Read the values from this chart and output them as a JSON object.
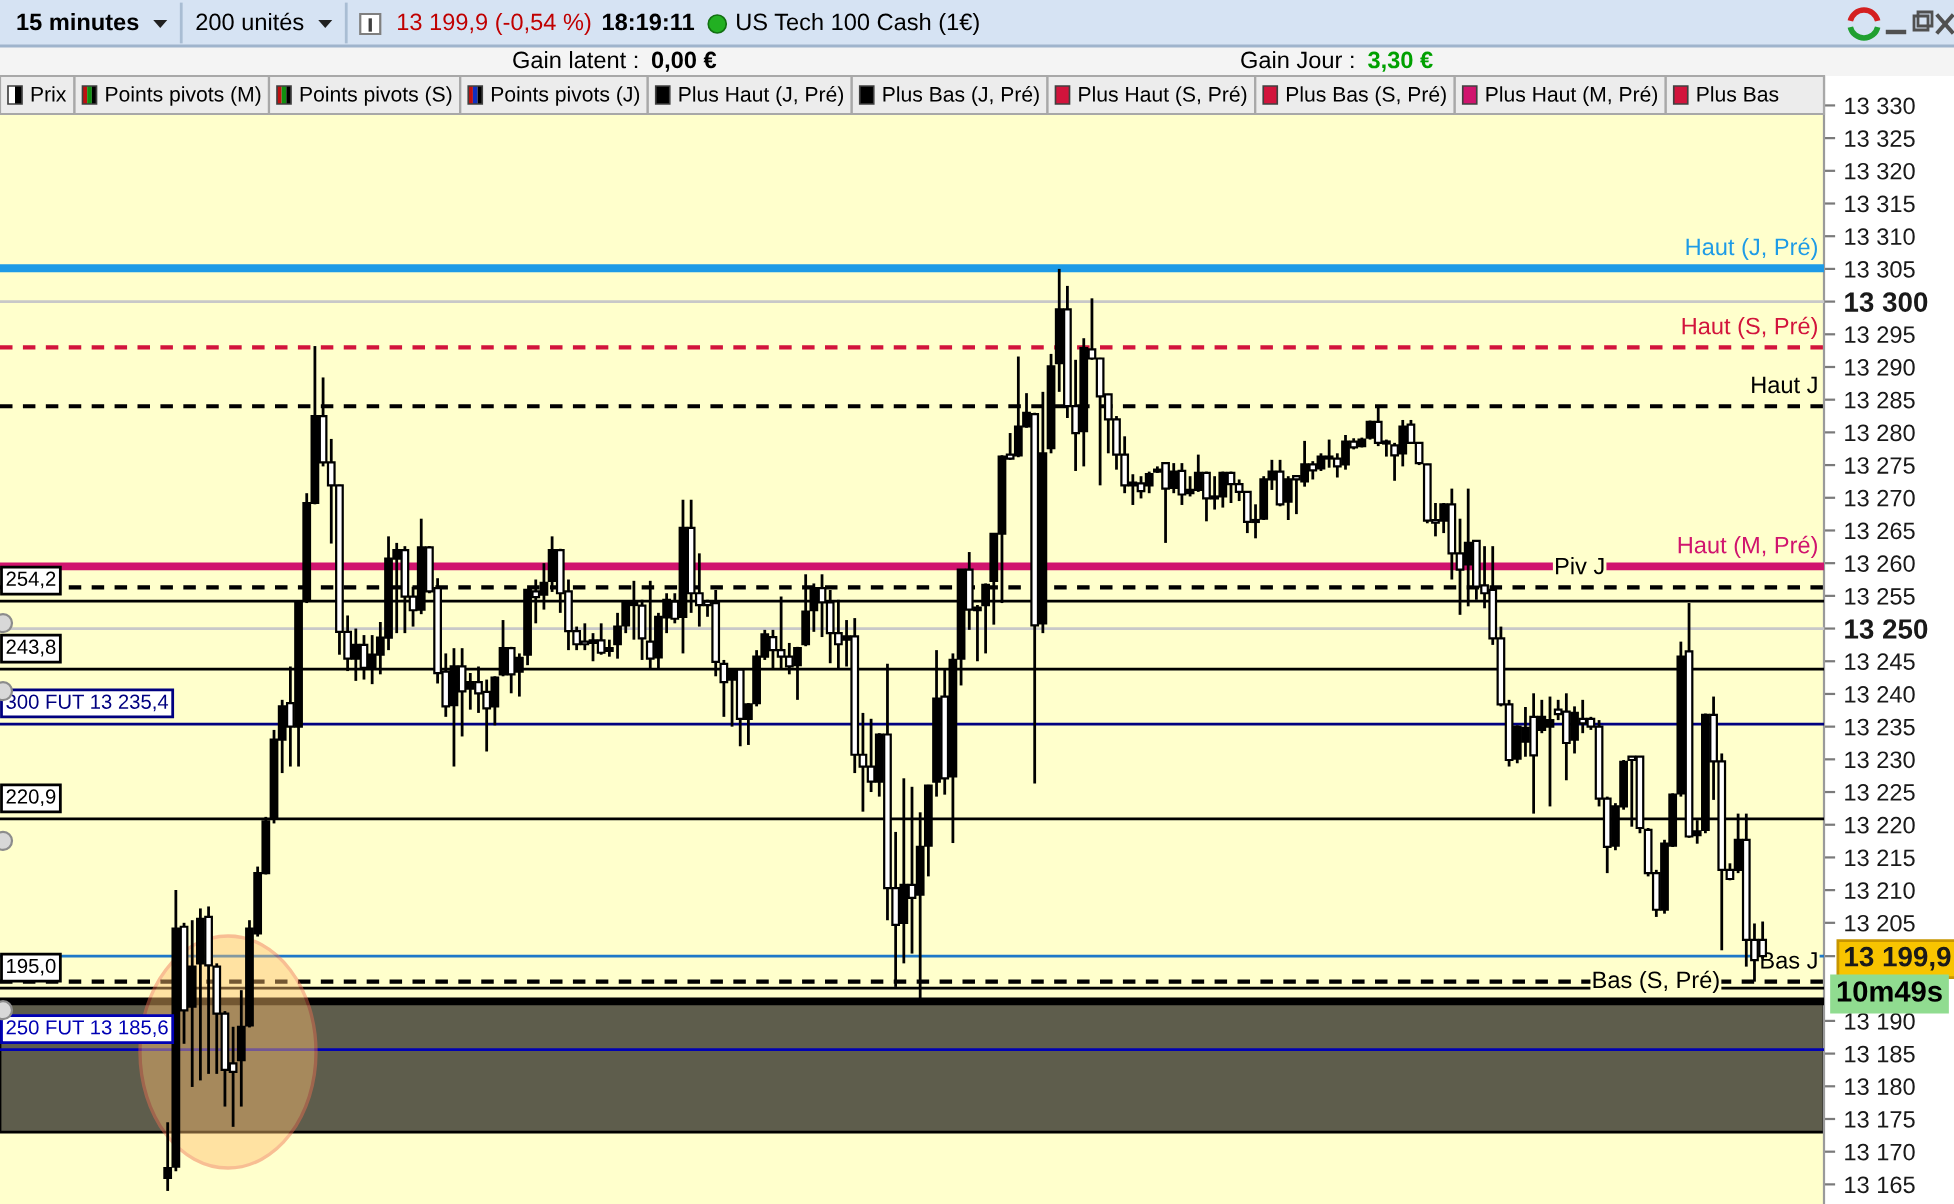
{
  "chart_data": {
    "type": "candlestick",
    "categories": [
      null,
      null,
      null,
      null,
      null,
      null,
      null,
      null,
      null,
      null,
      null,
      null,
      null,
      null,
      null,
      null,
      null,
      null,
      null,
      null,
      null,
      null,
      null,
      null,
      null,
      null,
      null,
      null,
      null,
      null,
      null,
      null,
      null,
      null,
      null,
      null,
      null,
      null,
      null,
      null,
      null,
      null,
      null,
      null,
      null,
      null,
      null,
      null,
      null,
      null,
      null,
      null,
      null,
      null,
      null,
      null,
      null,
      null,
      null,
      null,
      null,
      null,
      null,
      null,
      null,
      null,
      null,
      null,
      null,
      null,
      null,
      null,
      null,
      null,
      null,
      null,
      null,
      null,
      null,
      null,
      null,
      null,
      null,
      null,
      null,
      null,
      null,
      null,
      null,
      null,
      null,
      null,
      null,
      null,
      null,
      null,
      null,
      null,
      null,
      null,
      null,
      null,
      null,
      null,
      null,
      null,
      null,
      null,
      null,
      null,
      null,
      null,
      null,
      null,
      null,
      null,
      null,
      null,
      null,
      null,
      null,
      null,
      null,
      null,
      null,
      null,
      null,
      null,
      null,
      null,
      null,
      null,
      null,
      null,
      null,
      null,
      null,
      null,
      null,
      null,
      null,
      null,
      null,
      null,
      null,
      null,
      null,
      null,
      null,
      null,
      null,
      null,
      null,
      null,
      null,
      null,
      null,
      null,
      null,
      null,
      null,
      null,
      null,
      null,
      null,
      null,
      null,
      null,
      null,
      null,
      null,
      null,
      null,
      null,
      null,
      null,
      null,
      null,
      null,
      null,
      null,
      null,
      null,
      null,
      null,
      null,
      null,
      null,
      null,
      null,
      null,
      null,
      null,
      null,
      null,
      null,
      null,
      null,
      null,
      null,
      null,
      null,
      null,
      null,
      null,
      null,
      null,
      null,
      null,
      null,
      null,
      null,
      null,
      null,
      null,
      null,
      null,
      null,
      null,
      null,
      null,
      null,
      null
    ],
    "ohlc": [
      null,
      null,
      null,
      null,
      null,
      null,
      null,
      null,
      null,
      null,
      null,
      null,
      null,
      null,
      null,
      null,
      null,
      null,
      null,
      null,
      [
        13166.0,
        13174.5,
        13164.0,
        13167.5
      ],
      [
        13167.7,
        13210.0,
        13167.0,
        13204.1
      ],
      [
        13204.4,
        13205.0,
        13186.5,
        13191.6
      ],
      [
        13192.2,
        13205.4,
        13179.9,
        13198.3
      ],
      [
        13198.8,
        13207.2,
        13180.9,
        13205.6
      ],
      [
        13205.9,
        13207.5,
        13181.9,
        13198.5
      ],
      [
        13198.3,
        13198.8,
        13181.9,
        13191.1
      ],
      [
        13191.1,
        13191.5,
        13176.9,
        13182.5
      ],
      [
        13183.5,
        13189.1,
        13173.8,
        13182.2
      ],
      [
        13184.0,
        13194.7,
        13176.9,
        13189.1
      ],
      [
        13189.3,
        13205.4,
        13189.0,
        13204.1
      ],
      [
        13203.4,
        13213.6,
        13202.9,
        13212.6
      ],
      [
        13212.6,
        13221.2,
        13212.4,
        13220.5
      ],
      [
        13221.2,
        13234.5,
        13220.2,
        13233.0
      ],
      [
        13233.0,
        13239.1,
        13227.9,
        13238.1
      ],
      [
        13238.6,
        13244.2,
        13228.9,
        13235.0
      ],
      [
        13235.0,
        13254.0,
        13228.9,
        13253.9
      ],
      [
        13254.4,
        13270.7,
        13253.9,
        13269.2
      ],
      [
        13269.2,
        13293.2,
        13269.0,
        13282.5
      ],
      [
        13282.5,
        13288.4,
        13274.8,
        13275.4
      ],
      [
        13275.4,
        13279.0,
        13263.0,
        13271.9
      ],
      [
        13271.9,
        13272.0,
        13246.0,
        13249.5
      ],
      [
        13249.5,
        13252.0,
        13243.5,
        13245.4
      ],
      [
        13245.4,
        13250.0,
        13242.0,
        13247.5
      ],
      [
        13247.5,
        13249.0,
        13242.2,
        13244.0
      ],
      [
        13244.0,
        13249.0,
        13241.5,
        13246.0
      ],
      [
        13246.0,
        13251.0,
        13243.0,
        13248.6
      ],
      [
        13248.6,
        13264.1,
        13246.7,
        13260.7
      ],
      [
        13260.7,
        13263.1,
        13249.3,
        13262.0
      ],
      [
        13262.0,
        13262.6,
        13249.3,
        13254.9
      ],
      [
        13254.9,
        13256.4,
        13250.3,
        13252.8
      ],
      [
        13252.9,
        13266.8,
        13252.2,
        13262.4
      ],
      [
        13262.4,
        13262.6,
        13255.4,
        13255.7
      ],
      [
        13256.2,
        13257.7,
        13241.6,
        13243.2
      ],
      [
        13243.4,
        13246.2,
        13236.5,
        13238.1
      ],
      [
        13238.3,
        13247.0,
        13228.9,
        13244.2
      ],
      [
        13244.2,
        13247.0,
        13233.5,
        13240.4
      ],
      [
        13240.8,
        13243.2,
        13237.6,
        13241.8
      ],
      [
        13241.8,
        13244.2,
        13237.1,
        13240.1
      ],
      [
        13240.3,
        13242.2,
        13231.2,
        13237.8
      ],
      [
        13238.1,
        13242.7,
        13235.2,
        13242.5
      ],
      [
        13243.0,
        13251.3,
        13242.7,
        13247.0
      ],
      [
        13247.0,
        13247.2,
        13240.1,
        13243.0
      ],
      [
        13243.4,
        13246.2,
        13239.6,
        13245.5
      ],
      [
        13246.0,
        13256.0,
        13244.4,
        13255.9
      ],
      [
        13255.7,
        13257.5,
        13250.8,
        13254.8
      ],
      [
        13255.2,
        13260.0,
        13252.9,
        13257.0
      ],
      [
        13257.3,
        13264.1,
        13255.6,
        13262.0
      ],
      [
        13262.0,
        13262.2,
        13252.4,
        13255.4
      ],
      [
        13255.7,
        13257.5,
        13246.7,
        13249.6
      ],
      [
        13249.6,
        13250.3,
        13246.7,
        13247.6
      ],
      [
        13248.0,
        13250.8,
        13246.7,
        13247.6
      ],
      [
        13247.8,
        13249.3,
        13245.0,
        13248.2
      ],
      [
        13248.2,
        13250.8,
        13246.0,
        13246.3
      ],
      [
        13246.6,
        13248.3,
        13245.7,
        13247.0
      ],
      [
        13247.6,
        13252.4,
        13245.4,
        13250.3
      ],
      [
        13250.5,
        13254.0,
        13249.3,
        13253.9
      ],
      [
        13253.9,
        13257.3,
        13248.3,
        13253.6
      ],
      [
        13253.5,
        13254.4,
        13245.2,
        13248.5
      ],
      [
        13248.0,
        13257.3,
        13243.7,
        13245.4
      ],
      [
        13245.6,
        13252.4,
        13243.7,
        13251.8
      ],
      [
        13251.7,
        13255.4,
        13249.3,
        13254.4
      ],
      [
        13254.1,
        13255.4,
        13250.8,
        13251.5
      ],
      [
        13251.8,
        13269.7,
        13246.2,
        13265.4
      ],
      [
        13265.4,
        13269.7,
        13252.4,
        13255.4
      ],
      [
        13255.4,
        13261.5,
        13250.3,
        13253.6
      ],
      [
        13254.1,
        13254.4,
        13251.8,
        13253.6
      ],
      [
        13253.9,
        13255.9,
        13242.7,
        13244.9
      ],
      [
        13244.6,
        13245.2,
        13236.5,
        13241.8
      ],
      [
        13242.2,
        13243.9,
        13235.0,
        13243.7
      ],
      [
        13243.7,
        13243.9,
        13232.0,
        13236.2
      ],
      [
        13236.2,
        13238.6,
        13232.2,
        13238.4
      ],
      [
        13238.6,
        13246.7,
        13238.1,
        13245.7
      ],
      [
        13245.7,
        13249.8,
        13245.2,
        13249.1
      ],
      [
        13248.7,
        13249.8,
        13243.7,
        13246.7
      ],
      [
        13246.7,
        13254.9,
        13243.7,
        13245.7
      ],
      [
        13245.7,
        13247.8,
        13243.0,
        13244.2
      ],
      [
        13244.4,
        13247.2,
        13239.1,
        13247.0
      ],
      [
        13247.6,
        13258.3,
        13247.3,
        13252.6
      ],
      [
        13252.8,
        13256.9,
        13249.5,
        13256.2
      ],
      [
        13256.2,
        13258.3,
        13248.7,
        13254.0
      ],
      [
        13254.0,
        13255.9,
        13244.7,
        13249.3
      ],
      [
        13249.3,
        13254.4,
        13243.7,
        13247.6
      ],
      [
        13248.3,
        13251.3,
        13244.2,
        13248.8
      ],
      [
        13248.8,
        13251.6,
        13227.9,
        13230.7
      ],
      [
        13230.7,
        13237.1,
        13222.0,
        13228.9
      ],
      [
        13228.9,
        13236.2,
        13225.0,
        13226.6
      ],
      [
        13226.6,
        13234.0,
        13224.3,
        13233.8
      ],
      [
        13233.8,
        13244.6,
        13205.4,
        13210.3
      ],
      [
        13210.3,
        13218.9,
        13195.2,
        13204.7
      ],
      [
        13205.0,
        13227.1,
        13198.8,
        13210.8
      ],
      [
        13210.8,
        13225.8,
        13200.3,
        13208.8
      ],
      [
        13209.3,
        13221.9,
        13192.7,
        13216.6
      ],
      [
        13216.8,
        13226.1,
        13212.1,
        13226.0
      ],
      [
        13226.6,
        13246.7,
        13224.3,
        13239.3
      ],
      [
        13239.6,
        13243.9,
        13224.6,
        13227.1
      ],
      [
        13227.4,
        13246.2,
        13217.2,
        13245.2
      ],
      [
        13245.4,
        13259.1,
        13241.3,
        13259.0
      ],
      [
        13259.0,
        13261.7,
        13249.8,
        13252.9
      ],
      [
        13252.8,
        13253.6,
        13245.0,
        13253.2
      ],
      [
        13253.6,
        13256.9,
        13246.2,
        13256.7
      ],
      [
        13257.3,
        13264.6,
        13250.6,
        13264.5
      ],
      [
        13264.5,
        13276.5,
        13253.9,
        13276.3
      ],
      [
        13276.6,
        13279.9,
        13275.8,
        13276.0
      ],
      [
        13276.5,
        13291.6,
        13276.2,
        13280.9
      ],
      [
        13280.9,
        13286.0,
        13280.7,
        13283.0
      ],
      [
        13282.8,
        13283.0,
        13226.3,
        13250.5
      ],
      [
        13250.8,
        13286.2,
        13249.3,
        13276.8
      ],
      [
        13277.6,
        13292.0,
        13276.8,
        13290.1
      ],
      [
        13290.6,
        13305.0,
        13286.2,
        13298.8
      ],
      [
        13298.8,
        13302.4,
        13282.2,
        13284.0
      ],
      [
        13284.0,
        13291.1,
        13274.1,
        13279.9
      ],
      [
        13280.2,
        13294.4,
        13274.8,
        13292.9
      ],
      [
        13292.7,
        13300.5,
        13291.1,
        13291.3
      ],
      [
        13291.3,
        13291.4,
        13271.9,
        13285.5
      ],
      [
        13285.8,
        13285.9,
        13276.8,
        13282.0
      ],
      [
        13282.0,
        13282.5,
        13274.3,
        13276.6
      ],
      [
        13276.6,
        13279.4,
        13270.7,
        13271.9
      ],
      [
        13271.9,
        13273.6,
        13268.9,
        13272.3
      ],
      [
        13272.2,
        13273.3,
        13269.9,
        13271.0
      ],
      [
        13271.9,
        13274.0,
        13270.7,
        13273.6
      ],
      [
        13274.0,
        13274.8,
        13273.8,
        13274.3
      ],
      [
        13275.3,
        13275.4,
        13263.1,
        13271.4
      ],
      [
        13271.5,
        13275.3,
        13270.7,
        13274.0
      ],
      [
        13274.1,
        13275.3,
        13268.9,
        13270.5
      ],
      [
        13270.7,
        13273.3,
        13270.2,
        13271.2
      ],
      [
        13271.2,
        13276.6,
        13270.9,
        13273.8
      ],
      [
        13273.8,
        13274.0,
        13266.4,
        13269.9
      ],
      [
        13270.2,
        13273.3,
        13268.2,
        13269.9
      ],
      [
        13270.2,
        13274.0,
        13268.5,
        13273.8
      ],
      [
        13273.8,
        13274.0,
        13269.2,
        13272.1
      ],
      [
        13272.1,
        13272.8,
        13269.5,
        13270.9
      ],
      [
        13270.9,
        13271.0,
        13264.6,
        13266.3
      ],
      [
        13266.6,
        13269.0,
        13263.8,
        13266.3
      ],
      [
        13266.8,
        13273.3,
        13266.6,
        13272.8
      ],
      [
        13272.8,
        13275.8,
        13271.2,
        13274.0
      ],
      [
        13274.0,
        13275.8,
        13268.7,
        13269.0
      ],
      [
        13269.4,
        13273.3,
        13266.6,
        13272.8
      ],
      [
        13273.3,
        13273.4,
        13267.5,
        13272.8
      ],
      [
        13272.5,
        13278.7,
        13271.7,
        13275.1
      ],
      [
        13275.1,
        13275.6,
        13272.8,
        13274.2
      ],
      [
        13274.5,
        13276.8,
        13274.1,
        13276.3
      ],
      [
        13276.3,
        13278.9,
        13274.6,
        13276.0
      ],
      [
        13276.0,
        13276.8,
        13273.1,
        13274.8
      ],
      [
        13275.1,
        13279.6,
        13274.3,
        13278.6
      ],
      [
        13278.6,
        13279.1,
        13277.4,
        13277.7
      ],
      [
        13277.9,
        13279.2,
        13277.7,
        13278.9
      ],
      [
        13279.2,
        13281.8,
        13278.9,
        13281.6
      ],
      [
        13281.6,
        13284.0,
        13277.9,
        13278.4
      ],
      [
        13278.6,
        13278.9,
        13276.3,
        13278.3
      ],
      [
        13278.0,
        13278.4,
        13272.6,
        13276.5
      ],
      [
        13276.8,
        13281.9,
        13274.8,
        13280.9
      ],
      [
        13281.2,
        13281.9,
        13278.3,
        13278.4
      ],
      [
        13278.4,
        13278.5,
        13275.0,
        13275.3
      ],
      [
        13275.1,
        13275.2,
        13266.1,
        13266.5
      ],
      [
        13266.6,
        13269.2,
        13264.1,
        13266.2
      ],
      [
        13266.5,
        13269.2,
        13264.6,
        13269.0
      ],
      [
        13269.0,
        13271.4,
        13257.5,
        13261.5
      ],
      [
        13261.5,
        13266.8,
        13252.1,
        13259.0
      ],
      [
        13259.8,
        13271.4,
        13253.4,
        13263.1
      ],
      [
        13263.4,
        13263.5,
        13254.4,
        13256.4
      ],
      [
        13256.6,
        13262.6,
        13253.1,
        13255.4
      ],
      [
        13255.9,
        13262.6,
        13247.5,
        13248.5
      ],
      [
        13248.5,
        13250.3,
        13238.1,
        13238.4
      ],
      [
        13238.4,
        13239.1,
        13228.9,
        13229.9
      ],
      [
        13230.1,
        13235.2,
        13229.4,
        13235.0
      ],
      [
        13232.7,
        13238.0,
        13230.4,
        13234.8
      ],
      [
        13236.5,
        13240.1,
        13221.7,
        13230.6
      ],
      [
        13234.5,
        13239.1,
        13234.0,
        13236.5
      ],
      [
        13235.0,
        13239.6,
        13222.8,
        13236.0
      ],
      [
        13237.6,
        13239.1,
        13236.0,
        13236.9
      ],
      [
        13237.3,
        13240.1,
        13226.8,
        13232.5
      ],
      [
        13233.0,
        13238.1,
        13230.9,
        13237.1
      ],
      [
        13236.2,
        13239.1,
        13234.0,
        13235.5
      ],
      [
        13236.2,
        13236.5,
        13234.5,
        13235.0
      ],
      [
        13235.0,
        13236.0,
        13222.8,
        13224.0
      ],
      [
        13224.0,
        13224.3,
        13212.6,
        13216.6
      ],
      [
        13216.8,
        13223.3,
        13216.1,
        13222.8
      ],
      [
        13222.8,
        13229.9,
        13222.3,
        13229.6
      ],
      [
        13230.4,
        13230.5,
        13219.7,
        13229.9
      ],
      [
        13230.4,
        13230.5,
        13218.7,
        13219.5
      ],
      [
        13219.2,
        13219.5,
        13212.1,
        13212.6
      ],
      [
        13212.6,
        13213.1,
        13205.9,
        13207.0
      ],
      [
        13207.0,
        13217.7,
        13206.4,
        13217.1
      ],
      [
        13216.8,
        13224.8,
        13216.6,
        13224.6
      ],
      [
        13224.8,
        13248.0,
        13224.3,
        13245.7
      ],
      [
        13246.5,
        13253.9,
        13218.0,
        13218.2
      ],
      [
        13218.4,
        13220.7,
        13217.1,
        13219.0
      ],
      [
        13219.2,
        13237.0,
        13218.7,
        13236.8
      ],
      [
        13236.8,
        13239.6,
        13223.8,
        13229.7
      ],
      [
        13229.7,
        13230.9,
        13200.8,
        13213.1
      ],
      [
        13213.1,
        13214.1,
        13211.5,
        13211.7
      ],
      [
        13213.1,
        13221.7,
        13212.6,
        13217.7
      ],
      [
        13217.7,
        13221.7,
        13198.3,
        13202.4
      ],
      [
        13202.4,
        13204.9,
        13196.0,
        13199.3
      ],
      [
        13202.4,
        13205.2,
        13199.5,
        13199.9
      ],
      null,
      null,
      null,
      null,
      null,
      null,
      null
    ],
    "ylim": [
      13162,
      13334.5
    ],
    "yticks": [
      {
        "value": 13165,
        "label": "13 165"
      },
      {
        "value": 13170,
        "label": "13 170"
      },
      {
        "value": 13175,
        "label": "13 175"
      },
      {
        "value": 13180,
        "label": "13 180"
      },
      {
        "value": 13185,
        "label": "13 185"
      },
      {
        "value": 13190,
        "label": "13 190"
      },
      {
        "value": 13199.9,
        "label": "13 199,9"
      },
      {
        "value": 13205,
        "label": "13 205"
      },
      {
        "value": 13210,
        "label": "13 210"
      },
      {
        "value": 13215,
        "label": "13 215"
      },
      {
        "value": 13220,
        "label": "13 220"
      },
      {
        "value": 13225,
        "label": "13 225"
      },
      {
        "value": 13230,
        "label": "13 230"
      },
      {
        "value": 13235,
        "label": "13 235"
      },
      {
        "value": 13240,
        "label": "13 240"
      },
      {
        "value": 13245,
        "label": "13 245"
      },
      {
        "value": 13250,
        "label": "13 250"
      },
      {
        "value": 13255,
        "label": "13 255"
      },
      {
        "value": 13260,
        "label": "13 260"
      },
      {
        "value": 13265,
        "label": "13 265"
      },
      {
        "value": 13270,
        "label": "13 270"
      },
      {
        "value": 13275,
        "label": "13 275"
      },
      {
        "value": 13280,
        "label": "13 280"
      },
      {
        "value": 13285,
        "label": "13 285"
      },
      {
        "value": 13290,
        "label": "13 290"
      },
      {
        "value": 13295,
        "label": "13 295"
      },
      {
        "value": 13300,
        "label": "13 300"
      },
      {
        "value": 13305,
        "label": "13 305"
      },
      {
        "value": 13310,
        "label": "13 310"
      },
      {
        "value": 13315,
        "label": "13 315"
      },
      {
        "value": 13320,
        "label": "13 320"
      },
      {
        "value": 13325,
        "label": "13 325"
      },
      {
        "value": 13330,
        "label": "13 330"
      }
    ],
    "tick_labels": "y",
    "ref_lines": [
      {
        "axis": "y",
        "value": 13305.1,
        "label": "Haut (J, Pré)",
        "color": "#1e9be6"
      },
      {
        "axis": "y",
        "value": 13300,
        "color": "#c8c8c8"
      },
      {
        "axis": "y",
        "value": 13293,
        "label": "Haut (S, Pré)",
        "color": "#d2143c",
        "line_style": "dashed"
      },
      {
        "axis": "y",
        "value": 13284,
        "label": "Haut J",
        "color": "#000000",
        "line_style": "dashed"
      },
      {
        "axis": "y",
        "value": 13259.5,
        "label": "Haut (M, Pré)",
        "color": "#d0146e"
      },
      {
        "axis": "y",
        "value": 13256.3,
        "label": "Piv J",
        "color": "#000000",
        "line_style": "dashed"
      },
      {
        "axis": "y",
        "value": 13254.2,
        "color": "#000000"
      },
      {
        "axis": "y",
        "value": 13250,
        "color": "#c8c8c8"
      },
      {
        "axis": "y",
        "value": 13243.8,
        "color": "#000000"
      },
      {
        "axis": "y",
        "value": 13235.4,
        "color": "#000080"
      },
      {
        "axis": "y",
        "value": 13220.9,
        "color": "#000000"
      },
      {
        "axis": "y",
        "value": 13199.9,
        "color": "#1e78c8"
      },
      {
        "axis": "y",
        "value": 13196.0,
        "label": "Bas J",
        "color": "#000000",
        "line_style": "dashed"
      },
      {
        "axis": "y",
        "value": 13195.0,
        "color": "#000000"
      },
      {
        "axis": "y",
        "value": 13193,
        "label": "Bas (S, Pré)",
        "color": "#000000"
      },
      {
        "axis": "y",
        "value": 13185.6,
        "color": "#0000b4"
      }
    ],
    "bands": [
      {
        "axis": "y",
        "from": 13173,
        "to": 13193,
        "color": "#5e5d4c"
      }
    ],
    "annotations": [
      "15 minutes",
      "200 unités",
      "13 199,9 (-0,54 %)",
      "18:19:11",
      "US Tech 100 Cash (1€)",
      "Gain latent :",
      "0,00 €",
      "Gain Jour :",
      "3,30 €",
      "Prix",
      "Points pivots (M)",
      "Points pivots (S)",
      "Points pivots (J)",
      "Plus Haut (J, Pré)",
      "Plus Bas (J, Pré)",
      "Plus Haut (S, Pré)",
      "Plus Bas (S, Pré)",
      "Plus Haut (M, Pré)",
      "Plus Bas",
      "10m49s",
      {
        "text": "254,2",
        "y": 13254.2
      },
      {
        "text": "243,8",
        "y": 13243.8
      },
      {
        "text": "300 FUT 13 235,4",
        "y": 13235.4
      },
      {
        "text": "220,9",
        "y": 13220.9
      },
      {
        "text": "195,0",
        "y": 13195.0
      },
      {
        "text": "250 FUT 13 185,6",
        "y": 13185.6
      }
    ]
  }
}
